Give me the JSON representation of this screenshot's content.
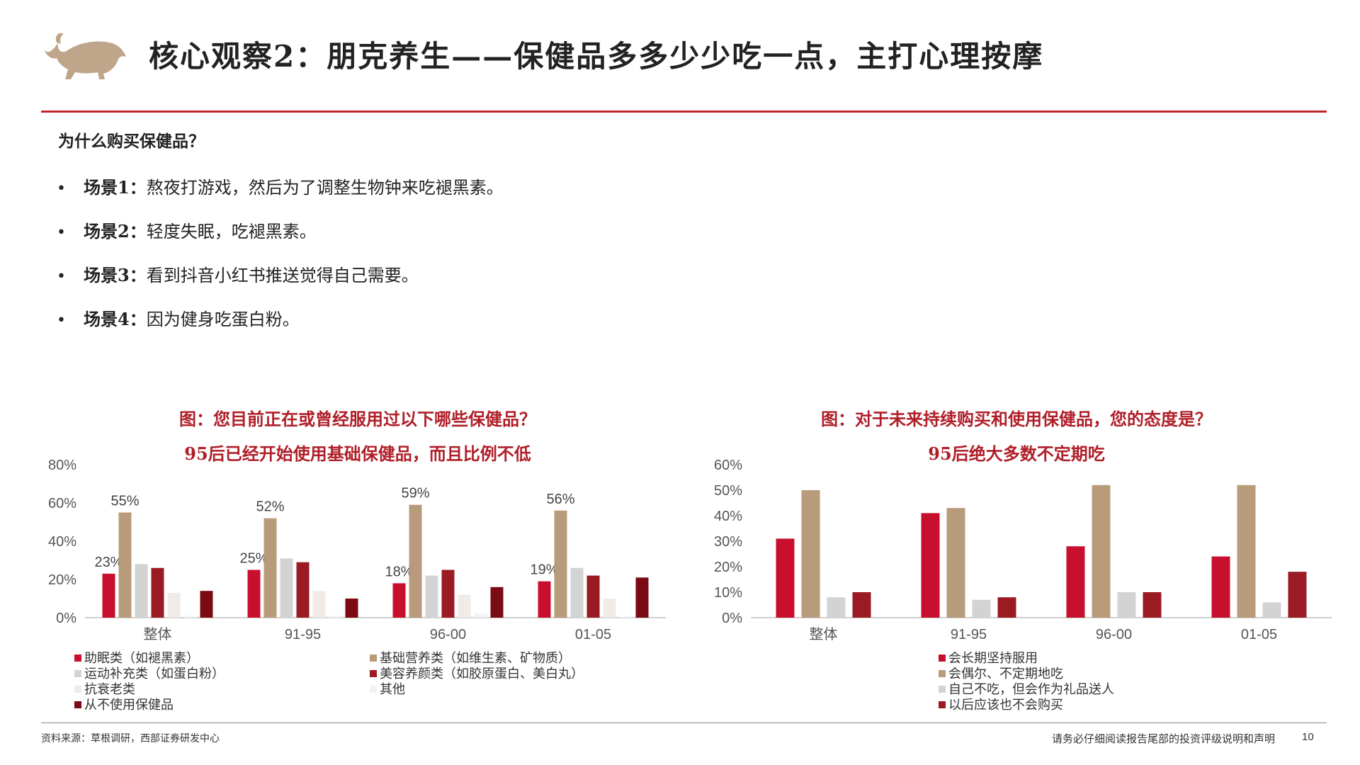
{
  "header": {
    "title": "核心观察2：朋克养生——保健品多多少少吃一点，主打心理按摩",
    "logo": "bull-logo-icon"
  },
  "main": {
    "question": "为什么购买保健品？",
    "scenarios": [
      {
        "label": "场景1：",
        "text": "熬夜打游戏，然后为了调整生物钟来吃褪黑素。"
      },
      {
        "label": "场景2：",
        "text": "轻度失眠，吃褪黑素。"
      },
      {
        "label": "场景3：",
        "text": "看到抖音小红书推送觉得自己需要。"
      },
      {
        "label": "场景4：",
        "text": "因为健身吃蛋白粉。"
      }
    ]
  },
  "left_caption": {
    "line1": "图：您目前正在或曾经服用过以下哪些保健品？",
    "line2": "95后已经开始使用基础保健品，而且比例不低"
  },
  "right_caption": {
    "line1": "图：对于未来持续购买和使用保健品，您的态度是？",
    "line2": "95后绝大多数不定期吃"
  },
  "chart_data": [
    {
      "type": "bar",
      "categories": [
        "整体",
        "91-95",
        "96-00",
        "01-05"
      ],
      "ylim": [
        0,
        80
      ],
      "yticks": [
        "0%",
        "20%",
        "40%",
        "60%",
        "80%"
      ],
      "grid": false,
      "legend_position": "bottom",
      "series": [
        {
          "name": "助眠类（如褪黑素）",
          "color": "#c8102e",
          "values": [
            23,
            25,
            18,
            19
          ],
          "labels": [
            "23%",
            "25%",
            "18%",
            "19%"
          ]
        },
        {
          "name": "基础营养类（如维生素、矿物质）",
          "color": "#b89b7a",
          "values": [
            55,
            52,
            59,
            56
          ],
          "labels": [
            "55%",
            "52%",
            "59%",
            "56%"
          ]
        },
        {
          "name": "运动补充类（如蛋白粉）",
          "color": "#d3d3d3",
          "values": [
            28,
            31,
            22,
            26
          ]
        },
        {
          "name": "美容养颜类（如胶原蛋白、美白丸）",
          "color": "#9b1b24",
          "values": [
            26,
            29,
            25,
            22
          ]
        },
        {
          "name": "抗衰老类",
          "color": "#f0ebe6",
          "values": [
            13,
            14,
            12,
            10
          ]
        },
        {
          "name": "其他",
          "color": "#f3f3f3",
          "values": [
            1,
            1,
            2,
            0.5
          ]
        },
        {
          "name": "从不使用保健品",
          "color": "#7a0b14",
          "values": [
            14,
            10,
            16,
            21
          ]
        }
      ]
    },
    {
      "type": "bar",
      "categories": [
        "整体",
        "91-95",
        "96-00",
        "01-05"
      ],
      "ylim": [
        0,
        60
      ],
      "yticks": [
        "0%",
        "10%",
        "20%",
        "30%",
        "40%",
        "50%",
        "60%"
      ],
      "grid": false,
      "legend_position": "bottom",
      "series": [
        {
          "name": "会长期坚持服用",
          "color": "#c8102e",
          "values": [
            31,
            41,
            28,
            24
          ]
        },
        {
          "name": "会偶尔、不定期地吃",
          "color": "#b89b7a",
          "values": [
            50,
            43,
            52,
            52
          ]
        },
        {
          "name": "自己不吃，但会作为礼品送人",
          "color": "#d3d3d3",
          "values": [
            8,
            7,
            10,
            6
          ]
        },
        {
          "name": "以后应该也不会购买",
          "color": "#9b1b24",
          "values": [
            10,
            8,
            10,
            18
          ]
        }
      ]
    }
  ],
  "footer": {
    "source": "资料来源：草根调研，西部证券研发中心",
    "disclaimer": "请务必仔细阅读报告尾部的投资评级说明和声明",
    "page": "10"
  }
}
